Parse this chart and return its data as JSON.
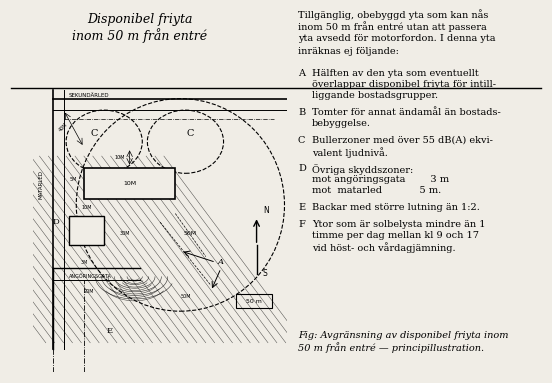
{
  "background_color": "#f0ede6",
  "title_italic": "Disponibel friyta\ninom 50 m från entré",
  "right_text_lines": [
    "Tillgänglig, obebyggd yta som kan nås",
    "inom 50 m från entré utan att passera",
    "yta avsedd för motorfordon. I denna yta",
    "inräknas ej följande:"
  ],
  "items": [
    {
      "letter": "A",
      "lines": [
        "Hälften av den yta som eventuellt",
        "överlappar disponibel friyta för intill-",
        "liggande bostadsgrupper."
      ]
    },
    {
      "letter": "B",
      "lines": [
        "Tomter för annat ändamål än bostads-",
        "bebyggelse."
      ]
    },
    {
      "letter": "C",
      "lines": [
        "Bullerzoner med över 55 dB(A) ekvi-",
        "valent ljudnivå."
      ]
    },
    {
      "letter": "D",
      "lines": [
        "Övriga skyddszoner:",
        "mot angöringsgata        3 m",
        "mot  matarled            5 m."
      ]
    },
    {
      "letter": "E",
      "lines": [
        "Backar med större lutning än 1:2."
      ]
    },
    {
      "letter": "F",
      "lines": [
        "Ytor som är solbelysta mindre än 1",
        "timme per dag mellan kl 9 och 17",
        "vid höst- och vårdagjämning."
      ]
    }
  ],
  "fig_caption": "Fig: Avgränsning av disponibel friyta inom\n50 m från entré — principillustration.",
  "text_fontsize": 7.0,
  "title_fontsize": 9.0,
  "caption_fontsize": 7.0
}
